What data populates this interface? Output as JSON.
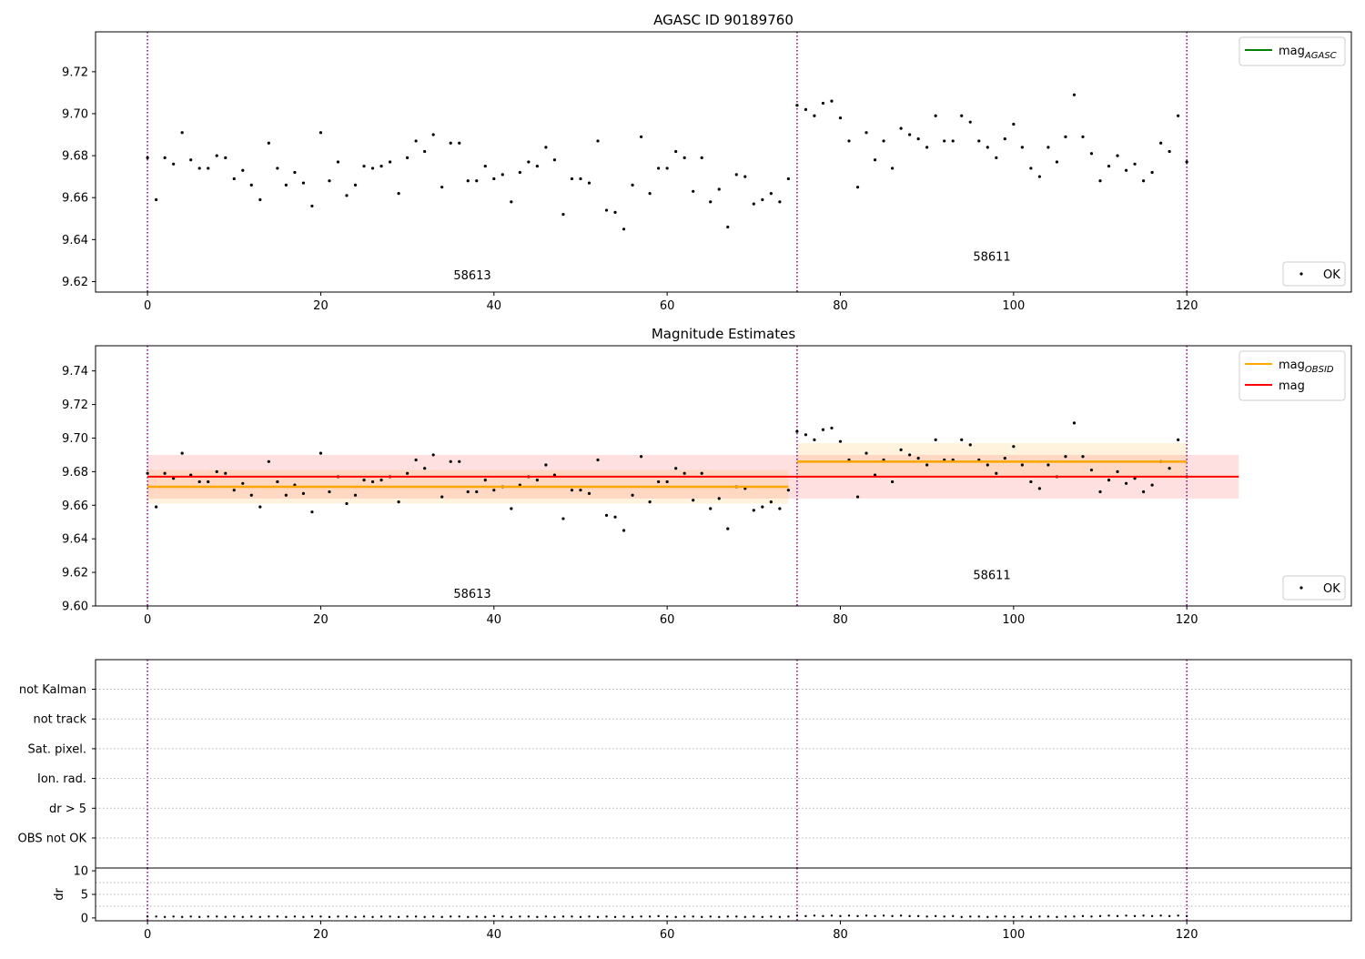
{
  "chart_data": [
    {
      "id": "agasc",
      "type": "scatter",
      "title": "AGASC ID 90189760",
      "xlim": [
        -6,
        139
      ],
      "ylim": [
        9.615,
        9.739
      ],
      "x_ticks": [
        0,
        20,
        40,
        60,
        80,
        100,
        120
      ],
      "y_ticks": [
        9.62,
        9.64,
        9.66,
        9.68,
        9.7,
        9.72
      ],
      "y_tick_decimals": 2,
      "vlines": [
        0,
        75,
        120
      ],
      "obsid_labels": [
        {
          "text": "58613",
          "x": 37.5,
          "y": 9.621
        },
        {
          "text": "58611",
          "x": 97.5,
          "y": 9.63
        }
      ],
      "legend_lines": [
        {
          "label": "mag",
          "subscript": "AGASC",
          "color": "#008000"
        }
      ],
      "scatter_legend": "OK",
      "values": [
        9.679,
        9.659,
        9.679,
        9.676,
        9.691,
        9.678,
        9.674,
        9.674,
        9.68,
        9.679,
        9.669,
        9.673,
        9.666,
        9.659,
        9.686,
        9.674,
        9.666,
        9.672,
        9.667,
        9.656,
        9.691,
        9.668,
        9.677,
        9.661,
        9.666,
        9.675,
        9.674,
        9.675,
        9.677,
        9.662,
        9.679,
        9.687,
        9.682,
        9.69,
        9.665,
        9.686,
        9.686,
        9.668,
        9.668,
        9.675,
        9.669,
        9.671,
        9.658,
        9.672,
        9.677,
        9.675,
        9.684,
        9.678,
        9.652,
        9.669,
        9.669,
        9.667,
        9.687,
        9.654,
        9.653,
        9.645,
        9.666,
        9.689,
        9.662,
        9.674,
        9.674,
        9.682,
        9.679,
        9.663,
        9.679,
        9.658,
        9.664,
        9.646,
        9.671,
        9.67,
        9.657,
        9.659,
        9.662,
        9.658,
        9.669,
        9.704,
        9.702,
        9.699,
        9.705,
        9.706,
        9.698,
        9.687,
        9.665,
        9.691,
        9.678,
        9.687,
        9.674,
        9.693,
        9.69,
        9.688,
        9.684,
        9.699,
        9.687,
        9.687,
        9.699,
        9.696,
        9.687,
        9.684,
        9.679,
        9.688,
        9.695,
        9.684,
        9.674,
        9.67,
        9.684,
        9.677,
        9.689,
        9.709,
        9.689,
        9.681,
        9.668,
        9.675,
        9.68,
        9.673,
        9.676,
        9.668,
        9.672,
        9.686,
        9.682,
        9.699,
        9.677
      ]
    },
    {
      "id": "estimates",
      "type": "scatter",
      "title": "Magnitude Estimates",
      "xlim": [
        -6,
        139
      ],
      "ylim": [
        9.6,
        9.755
      ],
      "x_ticks": [
        0,
        20,
        40,
        60,
        80,
        100,
        120
      ],
      "y_ticks": [
        9.6,
        9.62,
        9.64,
        9.66,
        9.68,
        9.7,
        9.72,
        9.74
      ],
      "y_tick_decimals": 2,
      "vlines": [
        0,
        75,
        120
      ],
      "obsid_labels": [
        {
          "text": "58613",
          "x": 37.5,
          "y": 9.605
        },
        {
          "text": "58611",
          "x": 97.5,
          "y": 9.616
        }
      ],
      "legend_lines": [
        {
          "label": "mag",
          "subscript": "OBSID",
          "color": "#ffa500"
        },
        {
          "label": "mag",
          "subscript": "",
          "color": "#ff0000"
        }
      ],
      "scatter_legend": "OK",
      "mag": {
        "value": 9.677,
        "band": [
          9.664,
          9.69
        ],
        "x": [
          0,
          126
        ]
      },
      "mag_obsid": [
        {
          "value": 9.671,
          "band": [
            9.661,
            9.681
          ],
          "x": [
            0,
            74
          ]
        },
        {
          "value": 9.686,
          "band": [
            9.676,
            9.697
          ],
          "x": [
            75,
            120
          ]
        }
      ],
      "values_ref": "agasc"
    },
    {
      "id": "flags",
      "type": "scatter",
      "xlim": [
        -6,
        139
      ],
      "categories": [
        "OBS not OK",
        "dr > 5",
        "Ion. rad.",
        "Sat. pixel.",
        "not track",
        "not Kalman"
      ],
      "vlines": [
        0,
        75,
        120
      ]
    },
    {
      "id": "dr",
      "type": "scatter",
      "xlim": [
        -6,
        139
      ],
      "ylim": [
        -0.6,
        10.6
      ],
      "ylabel": "dr",
      "x_ticks": [
        0,
        20,
        40,
        60,
        80,
        100,
        120
      ],
      "y_ticks": [
        0,
        5,
        10
      ],
      "vlines": [
        0,
        75,
        120
      ],
      "values": [
        0.3,
        0.3,
        0.2,
        0.3,
        0.2,
        0.3,
        0.2,
        0.3,
        0.3,
        0.2,
        0.3,
        0.2,
        0.3,
        0.2,
        0.3,
        0.3,
        0.2,
        0.3,
        0.2,
        0.3,
        0.3,
        0.2,
        0.3,
        0.3,
        0.2,
        0.3,
        0.2,
        0.3,
        0.3,
        0.2,
        0.3,
        0.3,
        0.2,
        0.3,
        0.2,
        0.3,
        0.3,
        0.2,
        0.3,
        0.2,
        0.4,
        0.3,
        0.2,
        0.3,
        0.3,
        0.2,
        0.3,
        0.2,
        0.3,
        0.3,
        0.2,
        0.3,
        0.2,
        0.3,
        0.2,
        0.3,
        0.2,
        0.3,
        0.3,
        0.4,
        0.3,
        0.2,
        0.3,
        0.3,
        0.2,
        0.3,
        0.2,
        0.3,
        0.3,
        0.2,
        0.3,
        0.2,
        0.3,
        0.2,
        0.3,
        0.5,
        0.4,
        0.5,
        0.4,
        0.5,
        0.4,
        0.5,
        0.4,
        0.5,
        0.4,
        0.5,
        0.4,
        0.5,
        0.4,
        0.4,
        0.3,
        0.4,
        0.3,
        0.4,
        0.2,
        0.3,
        0.3,
        0.2,
        0.3,
        0.3,
        0.2,
        0.3,
        0.2,
        0.3,
        0.3,
        0.2,
        0.3,
        0.3,
        0.4,
        0.3,
        0.4,
        0.5,
        0.4,
        0.5,
        0.4,
        0.5,
        0.4,
        0.5,
        0.4,
        0.5,
        0.4
      ]
    }
  ]
}
